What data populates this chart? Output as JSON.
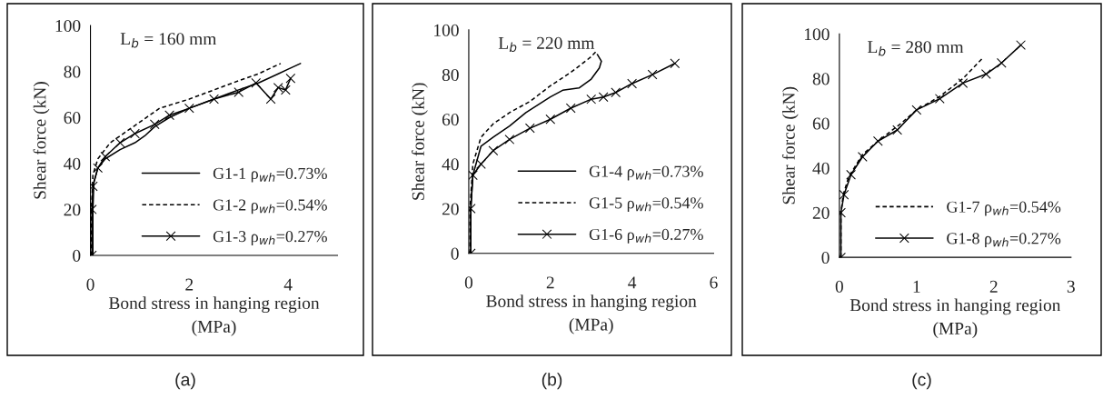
{
  "chart_data": [
    {
      "type": "line",
      "annotations": [
        "L$_{b}$ = 160 mm",
        "(a)"
      ],
      "xlabel": "Bond stress in hanging region\n(MPa)",
      "ylabel": "Shear force (kN)",
      "xlim": [
        0,
        5
      ],
      "xticks": [
        0,
        2,
        4
      ],
      "ylim": [
        0,
        100
      ],
      "yticks": [
        0,
        20,
        40,
        60,
        80,
        100
      ],
      "grid": false,
      "legend": "lower right",
      "series": [
        {
          "name": "G1-1 ρ$_{wh}$=0.73%",
          "color": "#000000",
          "line_style": "solid",
          "marker": "none",
          "x": [
            0.05,
            0.05,
            0.07,
            0.15,
            0.3,
            0.6,
            0.9,
            1.1,
            1.3,
            1.6,
            2.0,
            2.5,
            3.0,
            3.4,
            3.6,
            3.8,
            4.0,
            4.25
          ],
          "values": [
            0,
            20,
            32,
            38,
            42,
            46,
            49,
            52,
            56,
            60,
            64,
            68,
            72,
            75,
            77,
            79,
            81,
            83.5
          ]
        },
        {
          "name": "G1-2 ρ$_{wh}$=0.54%",
          "color": "#000000",
          "line_style": "dashed",
          "marker": "none",
          "x": [
            0.02,
            0.02,
            0.05,
            0.15,
            0.4,
            0.8,
            1.2,
            1.4,
            2.0,
            2.5,
            3.0,
            3.4,
            3.6,
            3.85
          ],
          "values": [
            0,
            20,
            35,
            42,
            49,
            55,
            61,
            64,
            68,
            72,
            76,
            79,
            81,
            83.5
          ]
        },
        {
          "name": "G1-3 ρ$_{wh}$=0.27%",
          "color": "#000000",
          "line_style": "solid",
          "marker": "cross",
          "x": [
            0.03,
            0.03,
            0.05,
            0.15,
            0.3,
            0.6,
            0.9,
            1.3,
            1.6,
            2.0,
            2.5,
            3.0,
            3.35,
            3.65,
            3.8,
            3.95,
            4.05
          ],
          "values": [
            0,
            20,
            30,
            38,
            43,
            49,
            53,
            57,
            61,
            64,
            68,
            71,
            75,
            68,
            73,
            72,
            77
          ]
        }
      ]
    },
    {
      "type": "line",
      "annotations": [
        "L$_{b}$ = 220 mm",
        "(b)"
      ],
      "xlabel": "Bond stress in hanging region\n(MPa)",
      "ylabel": "Shear force (kN)",
      "xlim": [
        0,
        6
      ],
      "xticks": [
        0,
        2,
        4,
        6
      ],
      "ylim": [
        0,
        100
      ],
      "yticks": [
        0,
        20,
        40,
        60,
        80,
        100
      ],
      "grid": false,
      "legend": "lower right",
      "series": [
        {
          "name": "G1-4 ρ$_{wh}$=0.73%",
          "color": "#000000",
          "line_style": "solid",
          "marker": "none",
          "x": [
            0.05,
            0.05,
            0.1,
            0.3,
            0.6,
            1.0,
            1.4,
            2.0,
            2.3,
            2.7,
            3.0,
            3.2,
            3.25,
            3.15
          ],
          "values": [
            0,
            20,
            35,
            48,
            52,
            57,
            63,
            70,
            73,
            74,
            78,
            83,
            86,
            89
          ]
        },
        {
          "name": "G1-5 ρ$_{wh}$=0.54%",
          "color": "#000000",
          "line_style": "dashed",
          "marker": "none",
          "x": [
            0.03,
            0.03,
            0.1,
            0.3,
            0.6,
            1.0,
            1.5,
            2.0,
            2.5,
            3.0,
            3.15
          ],
          "values": [
            0,
            20,
            40,
            52,
            58,
            63,
            68,
            75,
            81,
            88,
            91
          ]
        },
        {
          "name": "G1-6 ρ$_{wh}$=0.27%",
          "color": "#000000",
          "line_style": "solid",
          "marker": "cross",
          "x": [
            0.05,
            0.05,
            0.1,
            0.3,
            0.6,
            1.0,
            1.5,
            2.0,
            2.5,
            3.0,
            3.3,
            3.6,
            4.0,
            4.5,
            5.05
          ],
          "values": [
            0,
            20,
            35,
            40,
            46,
            51,
            56,
            60,
            65,
            69,
            70,
            72,
            76,
            80,
            85
          ]
        }
      ]
    },
    {
      "type": "line",
      "annotations": [
        "L$_{b}$ = 280 mm",
        "(c)"
      ],
      "xlabel": "Bond stress in hanging region\n(MPa)",
      "ylabel": "Shear force (kN)",
      "xlim": [
        0,
        3
      ],
      "xticks": [
        0,
        1,
        2,
        3
      ],
      "ylim": [
        0,
        100
      ],
      "yticks": [
        0,
        20,
        40,
        60,
        80,
        100
      ],
      "grid": false,
      "legend": "lower right",
      "series": [
        {
          "name": "G1-7 ρ$_{wh}$=0.54%",
          "color": "#000000",
          "line_style": "dashed",
          "marker": "none",
          "x": [
            0.02,
            0.02,
            0.05,
            0.12,
            0.3,
            0.5,
            0.8,
            1.0,
            1.3,
            1.6,
            1.85
          ],
          "values": [
            0,
            20,
            28,
            36,
            46,
            52,
            60,
            66,
            72,
            80,
            89
          ]
        },
        {
          "name": "G1-8 ρ$_{wh}$=0.27%",
          "color": "#000000",
          "line_style": "solid",
          "marker": "cross",
          "x": [
            0.02,
            0.02,
            0.06,
            0.15,
            0.3,
            0.5,
            0.75,
            1.0,
            1.3,
            1.6,
            1.9,
            2.1,
            2.35
          ],
          "values": [
            0,
            20,
            28,
            37,
            45,
            52,
            57,
            66,
            71,
            78,
            82,
            87,
            95
          ]
        }
      ]
    }
  ]
}
